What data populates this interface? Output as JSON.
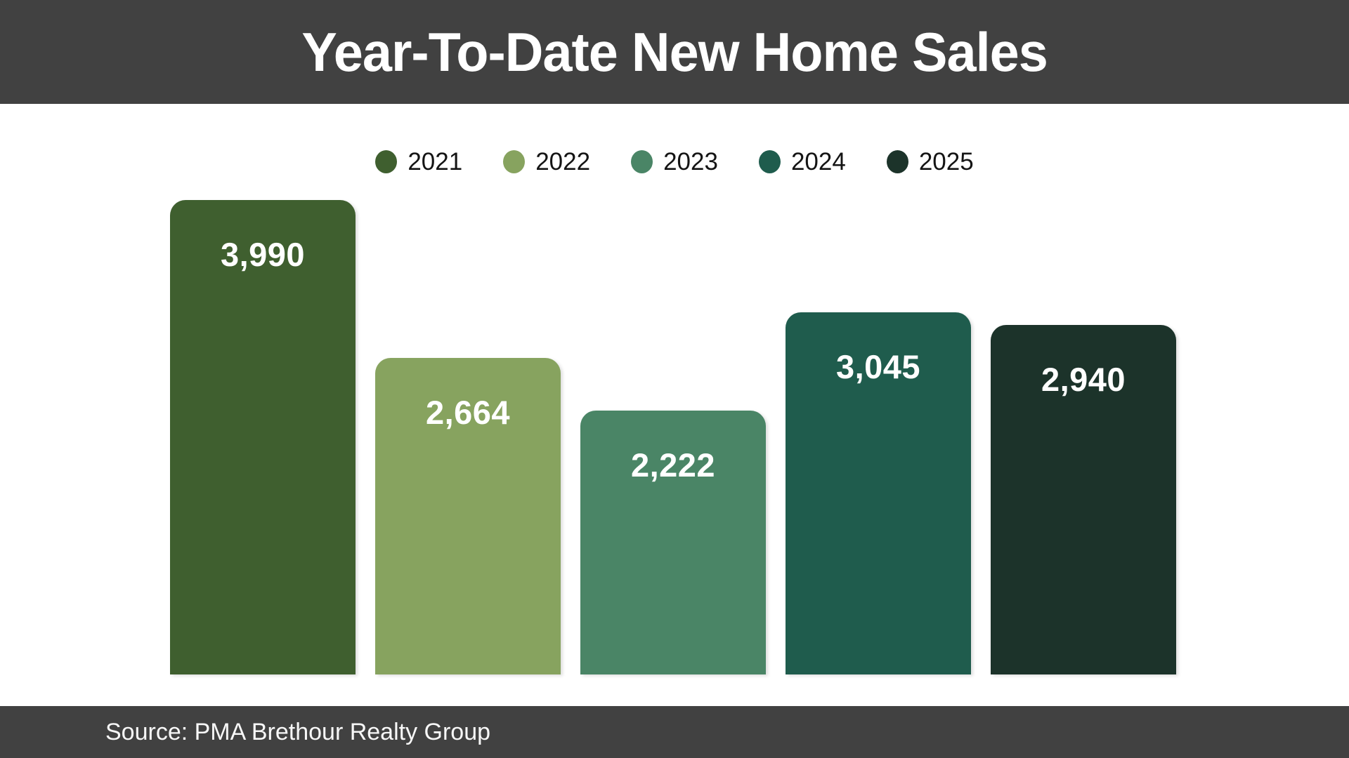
{
  "header": {
    "title": "Year-To-Date New Home Sales"
  },
  "footer": {
    "source": "Source: PMA Brethour Realty Group"
  },
  "colors": {
    "band": "#414141",
    "background": "#ffffff",
    "bar_value_text": "#ffffff",
    "legend_text": "#141414"
  },
  "chart_data": {
    "type": "bar",
    "title": "Year-To-Date New Home Sales",
    "categories": [
      "2021",
      "2022",
      "2023",
      "2024",
      "2025"
    ],
    "values": [
      3990,
      2664,
      2222,
      3045,
      2940
    ],
    "value_labels": [
      "3,990",
      "2,664",
      "2,222",
      "3,045",
      "2,940"
    ],
    "bar_colors": [
      "#3F5F2F",
      "#87A35F",
      "#4A8566",
      "#1F5C4D",
      "#1C332A"
    ],
    "xlabel": "",
    "ylabel": "",
    "ylim": [
      0,
      3990
    ],
    "grid": false,
    "legend_position": "top",
    "value_labels_position": "inside-top",
    "source": "Source: PMA Brethour Realty Group"
  }
}
